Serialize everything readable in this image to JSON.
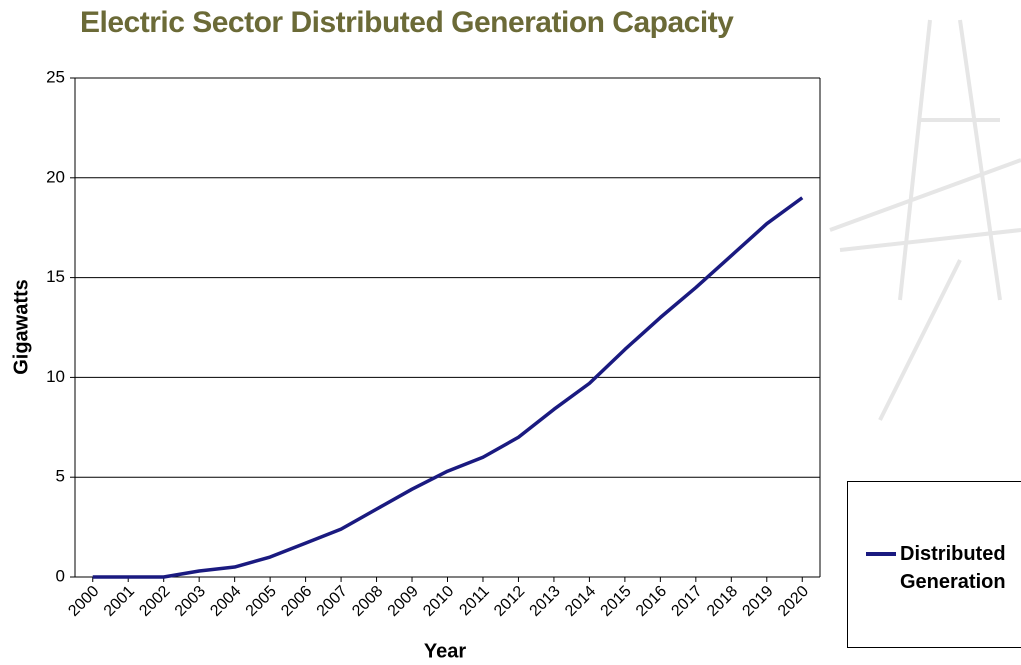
{
  "chart_data": {
    "type": "line",
    "title": "Electric Sector Distributed Generation Capacity",
    "xlabel": "Year",
    "ylabel": "Gigawatts",
    "categories": [
      "2000",
      "2001",
      "2002",
      "2003",
      "2004",
      "2005",
      "2006",
      "2007",
      "2008",
      "2009",
      "2010",
      "2011",
      "2012",
      "2013",
      "2014",
      "2015",
      "2016",
      "2017",
      "2018",
      "2019",
      "2020"
    ],
    "series": [
      {
        "name": "Distributed Generation",
        "color": "#1a1a80",
        "values": [
          0,
          0,
          0,
          0.3,
          0.5,
          1.0,
          1.7,
          2.4,
          3.4,
          4.4,
          5.3,
          6.0,
          7.0,
          8.4,
          9.7,
          11.4,
          13.0,
          14.5,
          16.1,
          17.7,
          19.0
        ]
      }
    ],
    "ylim": [
      0,
      25
    ],
    "yticks": [
      0,
      5,
      10,
      15,
      20,
      25
    ],
    "grid": true,
    "legend": "right"
  }
}
